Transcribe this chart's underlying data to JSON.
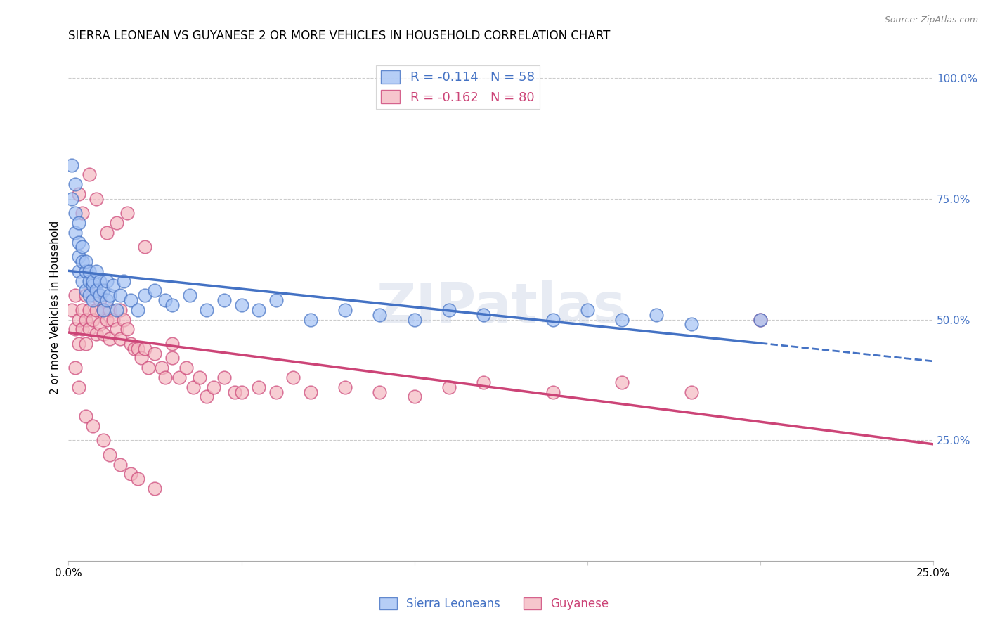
{
  "title": "SIERRA LEONEAN VS GUYANESE 2 OR MORE VEHICLES IN HOUSEHOLD CORRELATION CHART",
  "source": "Source: ZipAtlas.com",
  "ylabel": "2 or more Vehicles in Household",
  "xlim": [
    0.0,
    0.25
  ],
  "ylim": [
    0.0,
    1.05
  ],
  "blue_color": "#a4c2f4",
  "pink_color": "#f4b8c1",
  "trendline_blue": "#4472c4",
  "trendline_pink": "#cc4477",
  "right_axis_color": "#4472c4",
  "watermark": "ZIPatlas",
  "legend_sl": "R = -0.114   N = 58",
  "legend_gu": "R = -0.162   N = 80",
  "sierra_x": [
    0.001,
    0.001,
    0.002,
    0.002,
    0.002,
    0.003,
    0.003,
    0.003,
    0.003,
    0.004,
    0.004,
    0.004,
    0.005,
    0.005,
    0.005,
    0.006,
    0.006,
    0.006,
    0.007,
    0.007,
    0.007,
    0.008,
    0.008,
    0.009,
    0.009,
    0.01,
    0.01,
    0.011,
    0.011,
    0.012,
    0.013,
    0.014,
    0.015,
    0.016,
    0.018,
    0.02,
    0.022,
    0.025,
    0.028,
    0.03,
    0.035,
    0.04,
    0.045,
    0.05,
    0.055,
    0.06,
    0.07,
    0.08,
    0.09,
    0.1,
    0.11,
    0.12,
    0.14,
    0.15,
    0.16,
    0.17,
    0.18,
    0.2
  ],
  "sierra_y": [
    0.82,
    0.75,
    0.78,
    0.72,
    0.68,
    0.7,
    0.66,
    0.63,
    0.6,
    0.65,
    0.62,
    0.58,
    0.6,
    0.56,
    0.62,
    0.58,
    0.55,
    0.6,
    0.57,
    0.54,
    0.58,
    0.56,
    0.6,
    0.55,
    0.58,
    0.52,
    0.56,
    0.54,
    0.58,
    0.55,
    0.57,
    0.52,
    0.55,
    0.58,
    0.54,
    0.52,
    0.55,
    0.56,
    0.54,
    0.53,
    0.55,
    0.52,
    0.54,
    0.53,
    0.52,
    0.54,
    0.5,
    0.52,
    0.51,
    0.5,
    0.52,
    0.51,
    0.5,
    0.52,
    0.5,
    0.51,
    0.49,
    0.5
  ],
  "guyanese_x": [
    0.001,
    0.002,
    0.002,
    0.003,
    0.003,
    0.004,
    0.004,
    0.005,
    0.005,
    0.005,
    0.006,
    0.006,
    0.007,
    0.007,
    0.008,
    0.008,
    0.009,
    0.009,
    0.01,
    0.01,
    0.011,
    0.012,
    0.012,
    0.013,
    0.014,
    0.015,
    0.015,
    0.016,
    0.017,
    0.018,
    0.019,
    0.02,
    0.021,
    0.022,
    0.023,
    0.025,
    0.027,
    0.028,
    0.03,
    0.032,
    0.034,
    0.036,
    0.038,
    0.04,
    0.042,
    0.045,
    0.048,
    0.05,
    0.055,
    0.06,
    0.065,
    0.07,
    0.08,
    0.09,
    0.1,
    0.11,
    0.12,
    0.14,
    0.16,
    0.18,
    0.002,
    0.003,
    0.005,
    0.007,
    0.01,
    0.012,
    0.015,
    0.018,
    0.02,
    0.025,
    0.003,
    0.004,
    0.006,
    0.008,
    0.011,
    0.014,
    0.017,
    0.022,
    0.03,
    0.2
  ],
  "guyanese_y": [
    0.52,
    0.55,
    0.48,
    0.5,
    0.45,
    0.52,
    0.48,
    0.55,
    0.5,
    0.45,
    0.52,
    0.48,
    0.55,
    0.5,
    0.52,
    0.47,
    0.54,
    0.49,
    0.52,
    0.47,
    0.5,
    0.52,
    0.46,
    0.5,
    0.48,
    0.52,
    0.46,
    0.5,
    0.48,
    0.45,
    0.44,
    0.44,
    0.42,
    0.44,
    0.4,
    0.43,
    0.4,
    0.38,
    0.42,
    0.38,
    0.4,
    0.36,
    0.38,
    0.34,
    0.36,
    0.38,
    0.35,
    0.35,
    0.36,
    0.35,
    0.38,
    0.35,
    0.36,
    0.35,
    0.34,
    0.36,
    0.37,
    0.35,
    0.37,
    0.35,
    0.4,
    0.36,
    0.3,
    0.28,
    0.25,
    0.22,
    0.2,
    0.18,
    0.17,
    0.15,
    0.76,
    0.72,
    0.8,
    0.75,
    0.68,
    0.7,
    0.72,
    0.65,
    0.45,
    0.5
  ]
}
